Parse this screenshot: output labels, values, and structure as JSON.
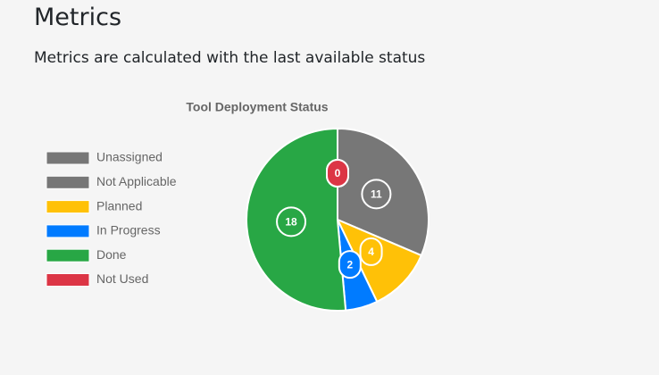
{
  "header": {
    "title": "Metrics",
    "subtitle": "Metrics are calculated with the last available status"
  },
  "chart_data": {
    "type": "pie",
    "title": "Tool Deployment Status",
    "categories": [
      "Unassigned",
      "Not Applicable",
      "Planned",
      "In Progress",
      "Done",
      "Not Used"
    ],
    "values": [
      0,
      11,
      4,
      2,
      18,
      0
    ],
    "colors": [
      "#777777",
      "#777777",
      "#ffc107",
      "#007bff",
      "#28a745",
      "#dc3545"
    ],
    "legend": "left"
  }
}
